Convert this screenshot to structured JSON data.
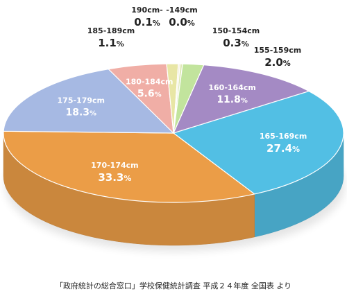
{
  "chart_data": {
    "type": "pie",
    "style": "3d",
    "categories": [
      "-149cm",
      "150-154cm",
      "155-159cm",
      "160-164cm",
      "165-169cm",
      "170-174cm",
      "175-179cm",
      "180-184cm",
      "185-189cm",
      "190cm-"
    ],
    "values": [
      0.0,
      0.3,
      2.0,
      11.8,
      27.4,
      33.3,
      18.3,
      5.6,
      1.1,
      0.1
    ],
    "value_labels": [
      "0.0",
      "0.3",
      "2.0",
      "11.8",
      "27.4",
      "33.3",
      "18.3",
      "5.6",
      "1.1",
      "0.1"
    ],
    "percent_sign": "%",
    "colors": [
      "#d9dfa5",
      "#dfe8b6",
      "#c2e49d",
      "#a48ac4",
      "#52bfe4",
      "#eb9d47",
      "#a6b9e3",
      "#f0aea6",
      "#e8e6a5",
      "#f5eedc"
    ]
  },
  "source_text": "「政府統計の総合窓口」学校保健統計調査 平成２４年度 全国表 より"
}
